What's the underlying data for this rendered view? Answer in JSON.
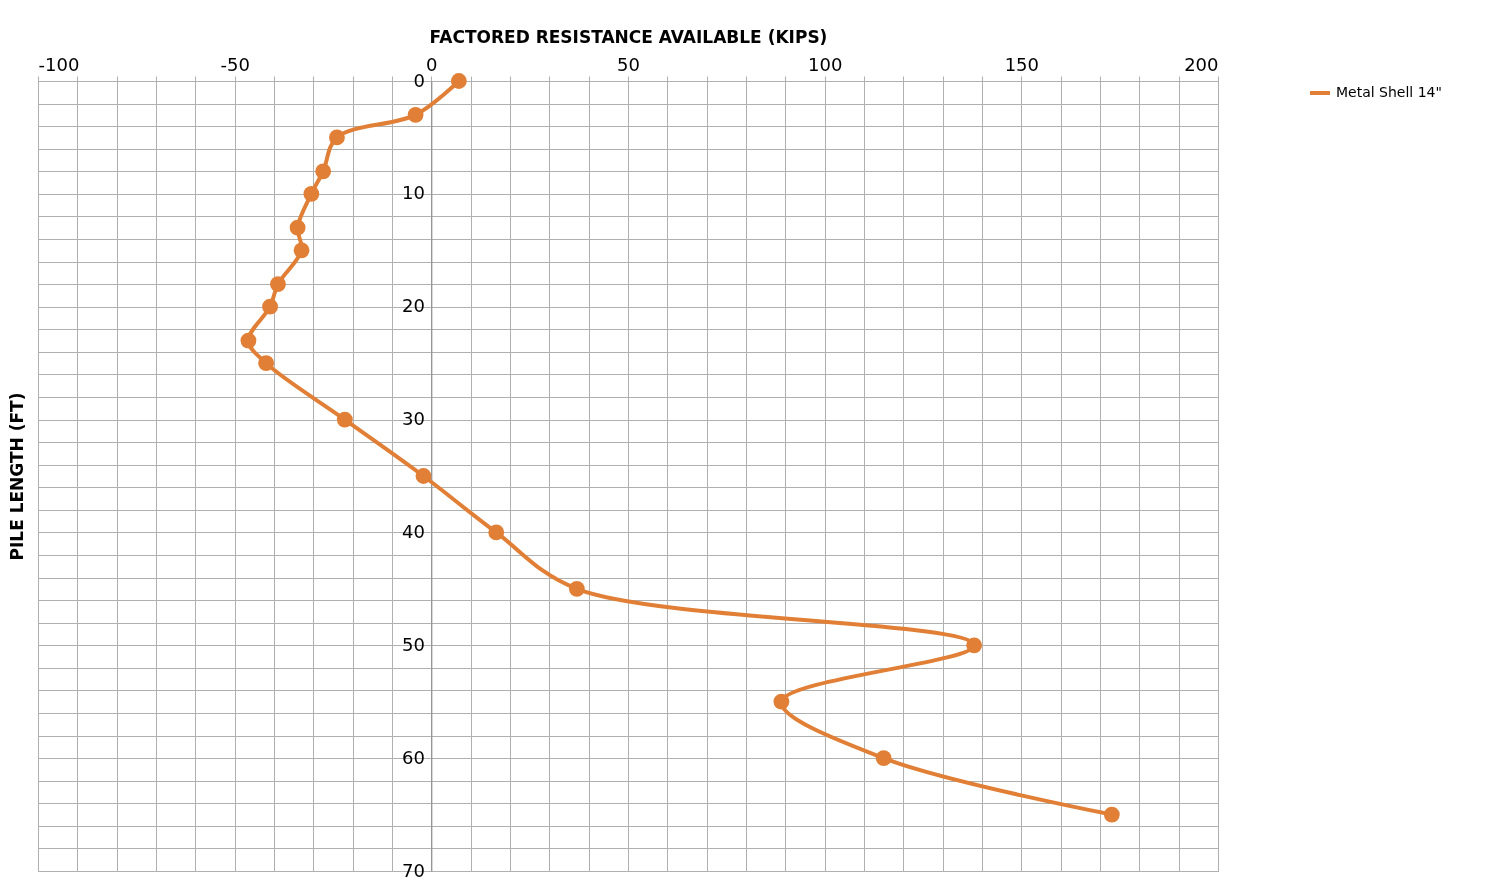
{
  "chart_data": {
    "type": "line",
    "xlabel": "FACTORED RESISTANCE AVAILABLE (KIPS)",
    "ylabel": "PILE LENGTH (FT)",
    "series": [
      {
        "name": "Metal Shell 14\"",
        "color": "#e07f35",
        "x": [
          7,
          -4,
          -24,
          -27.5,
          -30.5,
          -34,
          -33,
          -39,
          -41,
          -46.5,
          -42,
          -22,
          -2,
          16.5,
          37,
          138,
          89,
          115,
          173
        ],
        "values": [
          0,
          3,
          5,
          8,
          10,
          13,
          15,
          18,
          20,
          23,
          25,
          30,
          35,
          40,
          45,
          50,
          55,
          60,
          65
        ]
      }
    ],
    "xlim": [
      -100,
      200
    ],
    "xticks": [
      -100,
      {
        "value": -90,
        "label": null
      },
      {
        "value": -80,
        "label": null
      },
      {
        "value": -70,
        "label": null
      },
      {
        "value": -60,
        "label": null
      },
      -50,
      {
        "value": -40,
        "label": null
      },
      {
        "value": -30,
        "label": null
      },
      {
        "value": -20,
        "label": null
      },
      {
        "value": -10,
        "label": null
      },
      0,
      {
        "value": 10,
        "label": null
      },
      {
        "value": 20,
        "label": null
      },
      {
        "value": 30,
        "label": null
      },
      {
        "value": 40,
        "label": null
      },
      50,
      {
        "value": 60,
        "label": null
      },
      {
        "value": 70,
        "label": null
      },
      {
        "value": 80,
        "label": null
      },
      {
        "value": 90,
        "label": null
      },
      100,
      {
        "value": 110,
        "label": null
      },
      {
        "value": 120,
        "label": null
      },
      {
        "value": 130,
        "label": null
      },
      {
        "value": 140,
        "label": null
      },
      150,
      {
        "value": 160,
        "label": null
      },
      {
        "value": 170,
        "label": null
      },
      {
        "value": 180,
        "label": null
      },
      {
        "value": 190,
        "label": null
      },
      200
    ],
    "ylim": [
      70,
      0
    ],
    "yticks": [
      0,
      {
        "value": 2,
        "label": null
      },
      {
        "value": 4,
        "label": null
      },
      {
        "value": 6,
        "label": null
      },
      {
        "value": 8,
        "label": null
      },
      10,
      {
        "value": 12,
        "label": null
      },
      {
        "value": 14,
        "label": null
      },
      {
        "value": 16,
        "label": null
      },
      {
        "value": 18,
        "label": null
      },
      20,
      {
        "value": 22,
        "label": null
      },
      {
        "value": 24,
        "label": null
      },
      {
        "value": 26,
        "label": null
      },
      {
        "value": 28,
        "label": null
      },
      30,
      {
        "value": 32,
        "label": null
      },
      {
        "value": 34,
        "label": null
      },
      {
        "value": 36,
        "label": null
      },
      {
        "value": 38,
        "label": null
      },
      40,
      {
        "value": 42,
        "label": null
      },
      {
        "value": 44,
        "label": null
      },
      {
        "value": 46,
        "label": null
      },
      {
        "value": 48,
        "label": null
      },
      50,
      {
        "value": 52,
        "label": null
      },
      {
        "value": 54,
        "label": null
      },
      {
        "value": 56,
        "label": null
      },
      {
        "value": 58,
        "label": null
      },
      60,
      {
        "value": 62,
        "label": null
      },
      {
        "value": 64,
        "label": null
      },
      {
        "value": 66,
        "label": null
      },
      {
        "value": 68,
        "label": null
      },
      70
    ],
    "grid": true,
    "legend": "right",
    "marker": "circle",
    "line_style": "solid"
  }
}
